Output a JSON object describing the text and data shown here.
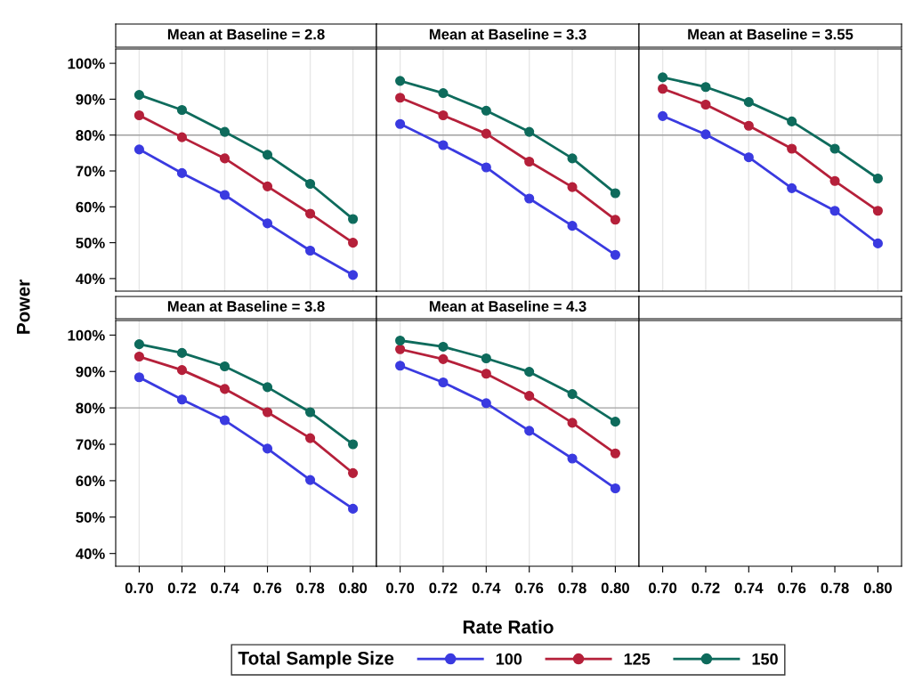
{
  "chart_data": [
    {
      "type": "line",
      "title": "Mean at Baseline = 2.8",
      "ylabel": "Power",
      "legend_title": "Total Sample Size",
      "legend": "bottom",
      "marker": "circle",
      "line_style": "solid",
      "grid": "x",
      "tick_labels": "y",
      "x": [
        0.7,
        0.72,
        0.74,
        0.76,
        0.78,
        0.8
      ],
      "xlim": [
        0.689,
        0.811
      ],
      "ylim": [
        36.5,
        104
      ],
      "yticks": [
        {
          "value": 40,
          "label": "40%"
        },
        {
          "value": 50,
          "label": "50%"
        },
        {
          "value": 60,
          "label": "60%"
        },
        {
          "value": 70,
          "label": "70%"
        },
        {
          "value": 80,
          "label": "80%"
        },
        {
          "value": 90,
          "label": "90%"
        },
        {
          "value": 100,
          "label": "100%"
        }
      ],
      "ref_lines": [
        {
          "axis": "y",
          "value": 80,
          "color": "#a0a0a0"
        }
      ],
      "series": [
        {
          "name": "100",
          "color": "#3a3ae0",
          "values": [
            76,
            69.4,
            63.3,
            55.4,
            47.8,
            41
          ]
        },
        {
          "name": "125",
          "color": "#b5203a",
          "values": [
            85.5,
            79.4,
            73.5,
            65.7,
            58.1,
            50
          ]
        },
        {
          "name": "150",
          "color": "#0e6b5c",
          "values": [
            91.2,
            87,
            80.9,
            74.5,
            66.4,
            56.6
          ]
        }
      ]
    },
    {
      "type": "line",
      "title": "Mean at Baseline = 3.3",
      "marker": "circle",
      "line_style": "solid",
      "grid": "x",
      "tick_labels": false,
      "x": [
        0.7,
        0.72,
        0.74,
        0.76,
        0.78,
        0.8
      ],
      "xlim": [
        0.689,
        0.811
      ],
      "ylim": [
        36.5,
        104
      ],
      "ref_lines": [
        {
          "axis": "y",
          "value": 80,
          "color": "#a0a0a0"
        }
      ],
      "series": [
        {
          "name": "100",
          "color": "#3a3ae0",
          "values": [
            83.1,
            77.2,
            71,
            62.3,
            54.7,
            46.6
          ]
        },
        {
          "name": "125",
          "color": "#b5203a",
          "values": [
            90.4,
            85.5,
            80.4,
            72.6,
            65.5,
            56.4
          ]
        },
        {
          "name": "150",
          "color": "#0e6b5c",
          "values": [
            95.1,
            91.7,
            86.8,
            80.9,
            73.5,
            63.8
          ]
        }
      ]
    },
    {
      "type": "line",
      "title": "Mean at Baseline = 3.55",
      "marker": "circle",
      "line_style": "solid",
      "grid": "x",
      "tick_labels": false,
      "x": [
        0.7,
        0.72,
        0.74,
        0.76,
        0.78,
        0.8
      ],
      "xlim": [
        0.689,
        0.811
      ],
      "ylim": [
        36.5,
        104
      ],
      "ref_lines": [
        {
          "axis": "y",
          "value": 80,
          "color": "#a0a0a0"
        }
      ],
      "series": [
        {
          "name": "100",
          "color": "#3a3ae0",
          "values": [
            85.3,
            80.2,
            73.8,
            65.2,
            58.9,
            49.8
          ]
        },
        {
          "name": "125",
          "color": "#b5203a",
          "values": [
            92.9,
            88.5,
            82.6,
            76.2,
            67.2,
            58.9
          ]
        },
        {
          "name": "150",
          "color": "#0e6b5c",
          "values": [
            96.1,
            93.4,
            89.2,
            83.8,
            76.2,
            67.9
          ]
        }
      ]
    },
    {
      "type": "line",
      "title": "Mean at Baseline = 3.8",
      "marker": "circle",
      "line_style": "solid",
      "grid": "x",
      "x": [
        0.7,
        0.72,
        0.74,
        0.76,
        0.78,
        0.8
      ],
      "xlim": [
        0.689,
        0.811
      ],
      "xticks": [
        {
          "value": 0.7,
          "label": "0.70"
        },
        {
          "value": 0.72,
          "label": "0.72"
        },
        {
          "value": 0.74,
          "label": "0.74"
        },
        {
          "value": 0.76,
          "label": "0.76"
        },
        {
          "value": 0.78,
          "label": "0.78"
        },
        {
          "value": 0.8,
          "label": "0.80"
        }
      ],
      "ylim": [
        36.5,
        104
      ],
      "yticks": [
        {
          "value": 40,
          "label": "40%"
        },
        {
          "value": 50,
          "label": "50%"
        },
        {
          "value": 60,
          "label": "60%"
        },
        {
          "value": 70,
          "label": "70%"
        },
        {
          "value": 80,
          "label": "80%"
        },
        {
          "value": 90,
          "label": "90%"
        },
        {
          "value": 100,
          "label": "100%"
        }
      ],
      "ref_lines": [
        {
          "axis": "y",
          "value": 80,
          "color": "#a0a0a0"
        }
      ],
      "series": [
        {
          "name": "100",
          "color": "#3a3ae0",
          "values": [
            88.4,
            82.3,
            76.6,
            68.8,
            60.2,
            52.3
          ]
        },
        {
          "name": "125",
          "color": "#b5203a",
          "values": [
            94.1,
            90.4,
            85.2,
            78.8,
            71.7,
            62.1
          ]
        },
        {
          "name": "150",
          "color": "#0e6b5c",
          "values": [
            97.5,
            95.1,
            91.4,
            85.7,
            78.8,
            70
          ]
        }
      ]
    },
    {
      "type": "line",
      "title": "Mean at Baseline = 4.3",
      "xlabel": "Rate Ratio",
      "marker": "circle",
      "line_style": "solid",
      "grid": "x",
      "tick_labels": "x",
      "x": [
        0.7,
        0.72,
        0.74,
        0.76,
        0.78,
        0.8
      ],
      "xlim": [
        0.689,
        0.811
      ],
      "xticks": [
        {
          "value": 0.7,
          "label": "0.70"
        },
        {
          "value": 0.72,
          "label": "0.72"
        },
        {
          "value": 0.74,
          "label": "0.74"
        },
        {
          "value": 0.76,
          "label": "0.76"
        },
        {
          "value": 0.78,
          "label": "0.78"
        },
        {
          "value": 0.8,
          "label": "0.80"
        }
      ],
      "ylim": [
        36.5,
        104
      ],
      "ref_lines": [
        {
          "axis": "y",
          "value": 80,
          "color": "#a0a0a0"
        }
      ],
      "series": [
        {
          "name": "100",
          "color": "#3a3ae0",
          "values": [
            91.6,
            87,
            81.3,
            73.7,
            66.1,
            57.9
          ]
        },
        {
          "name": "125",
          "color": "#b5203a",
          "values": [
            96.1,
            93.4,
            89.4,
            83.3,
            75.9,
            67.5
          ]
        },
        {
          "name": "150",
          "color": "#0e6b5c",
          "values": [
            98.5,
            96.8,
            93.6,
            89.9,
            83.8,
            76.2
          ]
        }
      ]
    },
    {
      "type": "line",
      "tick_labels": "x",
      "xlim": [
        0.689,
        0.811
      ],
      "xticks": [
        {
          "value": 0.7,
          "label": "0.70"
        },
        {
          "value": 0.72,
          "label": "0.72"
        },
        {
          "value": 0.74,
          "label": "0.74"
        },
        {
          "value": 0.76,
          "label": "0.76"
        },
        {
          "value": 0.78,
          "label": "0.78"
        },
        {
          "value": 0.8,
          "label": "0.80"
        }
      ],
      "ylim": [
        36.5,
        104
      ]
    }
  ]
}
